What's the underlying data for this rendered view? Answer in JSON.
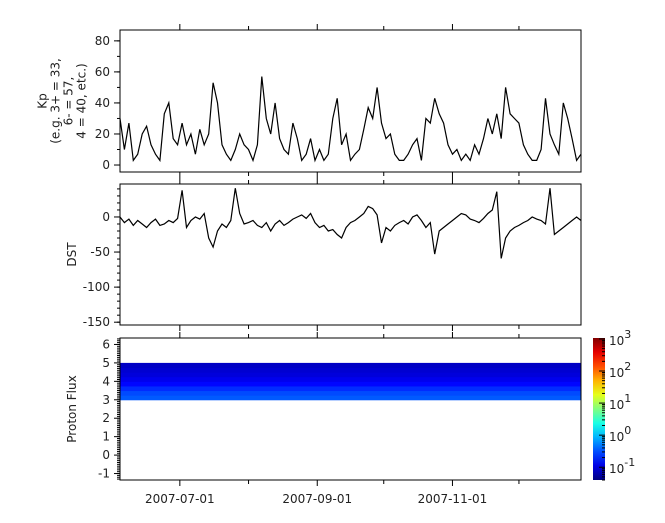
{
  "chart_data": [
    {
      "type": "line",
      "ylabel_lines": [
        "Kp",
        "(e.g. 3+ = 33,",
        "6- = 57,",
        "4 = 40, etc.)"
      ],
      "ylim": [
        -4.5,
        87
      ],
      "yticks": [
        0,
        20,
        40,
        60,
        80
      ],
      "xlim": [
        "2007-06-04",
        "2007-12-29"
      ],
      "series": [
        {
          "values": [
            30,
            10,
            27,
            3,
            7,
            20,
            25,
            13,
            7,
            3,
            33,
            40,
            17,
            13,
            27,
            13,
            20,
            7,
            23,
            13,
            20,
            53,
            40,
            13,
            7,
            3,
            10,
            20,
            13,
            10,
            3,
            13,
            57,
            30,
            20,
            40,
            17,
            10,
            7,
            27,
            17,
            3,
            7,
            17,
            3,
            10,
            3,
            7,
            30,
            43,
            13,
            20,
            3,
            7,
            10,
            23,
            37,
            30,
            50,
            27,
            17,
            20,
            7,
            3,
            3,
            7,
            13,
            17,
            3,
            30,
            27,
            43,
            33,
            27,
            13,
            7,
            10,
            3,
            7,
            3,
            13,
            7,
            17,
            30,
            20,
            33,
            17,
            50,
            33,
            30,
            27,
            13,
            7,
            3,
            3,
            10,
            43,
            20,
            13,
            7,
            40,
            30,
            17,
            3,
            7
          ]
        }
      ]
    },
    {
      "type": "line",
      "ylabel": "DST",
      "ylim": [
        -154,
        47
      ],
      "yticks": [
        0,
        -50,
        -100,
        -150
      ],
      "xlim": [
        "2007-06-04",
        "2007-12-29"
      ],
      "series": [
        {
          "values": [
            0,
            -8,
            -3,
            -12,
            -5,
            -10,
            -15,
            -8,
            -3,
            -12,
            -10,
            -5,
            -8,
            -2,
            38,
            -15,
            -5,
            0,
            -3,
            5,
            -30,
            -43,
            -20,
            -10,
            -15,
            -5,
            41,
            5,
            -10,
            -8,
            -5,
            -12,
            -15,
            -8,
            -20,
            -10,
            -5,
            -12,
            -8,
            -3,
            0,
            3,
            -2,
            5,
            -8,
            -15,
            -12,
            -20,
            -18,
            -25,
            -30,
            -15,
            -8,
            -5,
            0,
            5,
            15,
            12,
            3,
            -37,
            -15,
            -20,
            -12,
            -8,
            -5,
            -10,
            0,
            3,
            -5,
            -15,
            -8,
            -53,
            -20,
            -15,
            -10,
            -5,
            0,
            5,
            3,
            -3,
            -5,
            -8,
            -2,
            5,
            10,
            36,
            -59,
            -30,
            -20,
            -15,
            -12,
            -8,
            -5,
            0,
            -3,
            -5,
            -10,
            41,
            -25,
            -20,
            -15,
            -10,
            -5,
            0,
            -5
          ]
        }
      ]
    },
    {
      "type": "heatmap",
      "ylabel": "Proton Flux",
      "ylim": [
        -1.35,
        6.35
      ],
      "yticks": [
        6,
        5,
        4,
        3,
        2,
        1,
        0,
        -1
      ],
      "xlim": [
        "2007-06-04",
        "2007-12-29"
      ],
      "y_bins": [
        [
          3,
          3.25
        ],
        [
          3.25,
          3.5
        ],
        [
          3.5,
          3.75
        ],
        [
          3.75,
          4
        ],
        [
          4,
          4.25
        ],
        [
          4.25,
          4.5
        ],
        [
          4.5,
          4.75
        ],
        [
          4.75,
          5
        ]
      ],
      "z": [
        0.35,
        0.3,
        0.22,
        0.15,
        0.12,
        0.1,
        0.09,
        0.08
      ],
      "colorbar": {
        "scale": "log",
        "range": [
          0.04,
          1070
        ],
        "colormap": "jet",
        "ticks": [
          {
            "exp": "3",
            "value": 1000
          },
          {
            "exp": "2",
            "value": 100
          },
          {
            "exp": "1",
            "value": 10
          },
          {
            "exp": "0",
            "value": 1
          },
          {
            "exp": "-1",
            "value": 0.1
          }
        ],
        "base": "10"
      }
    }
  ],
  "x": [
    "2007-06-04",
    "2007-06-06",
    "2007-06-08",
    "2007-06-10",
    "2007-06-12",
    "2007-06-14",
    "2007-06-16",
    "2007-06-18",
    "2007-06-20",
    "2007-06-22",
    "2007-06-24",
    "2007-06-26",
    "2007-06-28",
    "2007-06-30",
    "2007-07-02",
    "2007-07-04",
    "2007-07-06",
    "2007-07-08",
    "2007-07-10",
    "2007-07-12",
    "2007-07-14",
    "2007-07-16",
    "2007-07-18",
    "2007-07-20",
    "2007-07-22",
    "2007-07-24",
    "2007-07-26",
    "2007-07-28",
    "2007-07-30",
    "2007-08-01",
    "2007-08-03",
    "2007-08-05",
    "2007-08-07",
    "2007-08-09",
    "2007-08-11",
    "2007-08-13",
    "2007-08-15",
    "2007-08-17",
    "2007-08-19",
    "2007-08-21",
    "2007-08-23",
    "2007-08-25",
    "2007-08-27",
    "2007-08-29",
    "2007-08-31",
    "2007-09-02",
    "2007-09-04",
    "2007-09-06",
    "2007-09-08",
    "2007-09-10",
    "2007-09-12",
    "2007-09-14",
    "2007-09-16",
    "2007-09-18",
    "2007-09-20",
    "2007-09-22",
    "2007-09-24",
    "2007-09-26",
    "2007-09-28",
    "2007-09-30",
    "2007-10-02",
    "2007-10-04",
    "2007-10-06",
    "2007-10-08",
    "2007-10-10",
    "2007-10-12",
    "2007-10-14",
    "2007-10-16",
    "2007-10-18",
    "2007-10-20",
    "2007-10-22",
    "2007-10-24",
    "2007-10-26",
    "2007-10-28",
    "2007-10-30",
    "2007-11-01",
    "2007-11-03",
    "2007-11-05",
    "2007-11-07",
    "2007-11-09",
    "2007-11-11",
    "2007-11-13",
    "2007-11-15",
    "2007-11-17",
    "2007-11-19",
    "2007-11-21",
    "2007-11-23",
    "2007-11-25",
    "2007-11-27",
    "2007-11-29",
    "2007-12-01",
    "2007-12-03",
    "2007-12-05",
    "2007-12-07",
    "2007-12-09",
    "2007-12-11",
    "2007-12-13",
    "2007-12-15",
    "2007-12-17",
    "2007-12-19",
    "2007-12-21",
    "2007-12-23",
    "2007-12-25",
    "2007-12-27",
    "2007-12-29"
  ],
  "x_major_ticks": [
    "2007-07-01",
    "2007-09-01",
    "2007-11-01"
  ],
  "x_minor_ticks": [
    "2007-08-01",
    "2007-10-01",
    "2007-12-01"
  ]
}
